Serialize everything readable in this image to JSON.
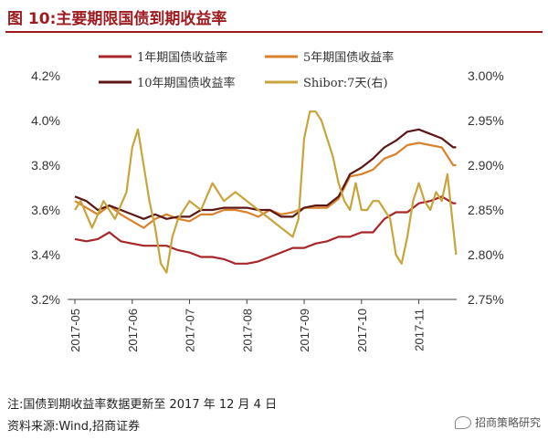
{
  "title": "图 10:主要期限国债到期收益率",
  "notes": {
    "line1": "注:国债到期收益率数据更新至 2017 年 12 月 4 日",
    "line2": "资料来源:Wind,招商证券"
  },
  "brand": {
    "name": "招商策略研究",
    "icon": "wechat-icon"
  },
  "chart_data": {
    "type": "line",
    "title": "",
    "xlabel": "",
    "ylabel": "",
    "y_left": {
      "ticks": [
        "4.2%",
        "4.0%",
        "3.8%",
        "3.6%",
        "3.4%",
        "3.2%"
      ],
      "range": [
        3.2,
        4.2
      ]
    },
    "y_right": {
      "ticks": [
        "3.00%",
        "2.95%",
        "2.90%",
        "2.85%",
        "2.80%",
        "2.75%"
      ],
      "range": [
        2.75,
        3.0
      ]
    },
    "x_ticks": [
      "2017-05",
      "2017-06",
      "2017-07",
      "2017-08",
      "2017-09",
      "2017-10",
      "2017-11"
    ],
    "grid": false,
    "legend_position": "top",
    "legend": [
      "1年期国债收益率",
      "5年期国债收益率",
      "10年期国债收益率",
      "Shibor:7天(右)"
    ],
    "series": [
      {
        "name": "1年期国债收益率",
        "axis": "left",
        "color": "#a8252a",
        "points": [
          [
            0.0,
            3.47
          ],
          [
            0.2,
            3.46
          ],
          [
            0.4,
            3.47
          ],
          [
            0.6,
            3.5
          ],
          [
            0.8,
            3.46
          ],
          [
            1.0,
            3.45
          ],
          [
            1.2,
            3.44
          ],
          [
            1.4,
            3.44
          ],
          [
            1.6,
            3.44
          ],
          [
            1.8,
            3.42
          ],
          [
            2.0,
            3.41
          ],
          [
            2.2,
            3.39
          ],
          [
            2.4,
            3.39
          ],
          [
            2.6,
            3.38
          ],
          [
            2.8,
            3.36
          ],
          [
            3.0,
            3.36
          ],
          [
            3.2,
            3.37
          ],
          [
            3.4,
            3.39
          ],
          [
            3.6,
            3.41
          ],
          [
            3.8,
            3.43
          ],
          [
            4.0,
            3.43
          ],
          [
            4.2,
            3.45
          ],
          [
            4.4,
            3.46
          ],
          [
            4.6,
            3.48
          ],
          [
            4.8,
            3.48
          ],
          [
            5.0,
            3.5
          ],
          [
            5.2,
            3.5
          ],
          [
            5.4,
            3.56
          ],
          [
            5.6,
            3.59
          ],
          [
            5.8,
            3.59
          ],
          [
            6.0,
            3.63
          ],
          [
            6.2,
            3.64
          ],
          [
            6.4,
            3.66
          ],
          [
            6.6,
            3.63
          ],
          [
            6.65,
            3.63
          ]
        ]
      },
      {
        "name": "5年期国债收益率",
        "axis": "left",
        "color": "#d9822b",
        "points": [
          [
            0.0,
            3.64
          ],
          [
            0.2,
            3.61
          ],
          [
            0.4,
            3.58
          ],
          [
            0.6,
            3.62
          ],
          [
            0.8,
            3.58
          ],
          [
            1.0,
            3.55
          ],
          [
            1.2,
            3.52
          ],
          [
            1.4,
            3.56
          ],
          [
            1.6,
            3.58
          ],
          [
            1.8,
            3.56
          ],
          [
            2.0,
            3.55
          ],
          [
            2.2,
            3.58
          ],
          [
            2.4,
            3.58
          ],
          [
            2.6,
            3.6
          ],
          [
            2.8,
            3.6
          ],
          [
            3.0,
            3.59
          ],
          [
            3.2,
            3.57
          ],
          [
            3.4,
            3.6
          ],
          [
            3.6,
            3.58
          ],
          [
            3.8,
            3.59
          ],
          [
            4.0,
            3.61
          ],
          [
            4.2,
            3.61
          ],
          [
            4.4,
            3.61
          ],
          [
            4.6,
            3.65
          ],
          [
            4.8,
            3.75
          ],
          [
            5.0,
            3.76
          ],
          [
            5.2,
            3.78
          ],
          [
            5.4,
            3.83
          ],
          [
            5.6,
            3.85
          ],
          [
            5.8,
            3.89
          ],
          [
            6.0,
            3.9
          ],
          [
            6.2,
            3.89
          ],
          [
            6.4,
            3.88
          ],
          [
            6.6,
            3.8
          ],
          [
            6.65,
            3.8
          ]
        ]
      },
      {
        "name": "10年期国债收益率",
        "axis": "left",
        "color": "#5c1616",
        "points": [
          [
            0.0,
            3.66
          ],
          [
            0.2,
            3.64
          ],
          [
            0.4,
            3.6
          ],
          [
            0.6,
            3.62
          ],
          [
            0.8,
            3.6
          ],
          [
            1.0,
            3.58
          ],
          [
            1.2,
            3.56
          ],
          [
            1.4,
            3.58
          ],
          [
            1.6,
            3.56
          ],
          [
            1.8,
            3.57
          ],
          [
            2.0,
            3.57
          ],
          [
            2.2,
            3.6
          ],
          [
            2.4,
            3.6
          ],
          [
            2.6,
            3.61
          ],
          [
            2.8,
            3.61
          ],
          [
            3.0,
            3.61
          ],
          [
            3.2,
            3.6
          ],
          [
            3.4,
            3.6
          ],
          [
            3.6,
            3.57
          ],
          [
            3.8,
            3.57
          ],
          [
            4.0,
            3.61
          ],
          [
            4.2,
            3.62
          ],
          [
            4.4,
            3.62
          ],
          [
            4.6,
            3.66
          ],
          [
            4.8,
            3.76
          ],
          [
            5.0,
            3.79
          ],
          [
            5.2,
            3.83
          ],
          [
            5.4,
            3.88
          ],
          [
            5.6,
            3.91
          ],
          [
            5.8,
            3.95
          ],
          [
            6.0,
            3.96
          ],
          [
            6.2,
            3.94
          ],
          [
            6.4,
            3.92
          ],
          [
            6.6,
            3.88
          ],
          [
            6.65,
            3.88
          ]
        ]
      },
      {
        "name": "Shibor:7天(右)",
        "axis": "right",
        "color": "#c8a43a",
        "points": [
          [
            0.0,
            2.85
          ],
          [
            0.1,
            2.86
          ],
          [
            0.3,
            2.83
          ],
          [
            0.5,
            2.86
          ],
          [
            0.7,
            2.84
          ],
          [
            0.9,
            2.87
          ],
          [
            1.0,
            2.92
          ],
          [
            1.1,
            2.94
          ],
          [
            1.2,
            2.9
          ],
          [
            1.3,
            2.86
          ],
          [
            1.4,
            2.83
          ],
          [
            1.5,
            2.79
          ],
          [
            1.6,
            2.78
          ],
          [
            1.7,
            2.82
          ],
          [
            1.8,
            2.84
          ],
          [
            2.0,
            2.86
          ],
          [
            2.2,
            2.85
          ],
          [
            2.4,
            2.88
          ],
          [
            2.6,
            2.86
          ],
          [
            2.8,
            2.87
          ],
          [
            3.0,
            2.86
          ],
          [
            3.2,
            2.85
          ],
          [
            3.4,
            2.84
          ],
          [
            3.6,
            2.83
          ],
          [
            3.8,
            2.82
          ],
          [
            3.9,
            2.84
          ],
          [
            4.0,
            2.93
          ],
          [
            4.1,
            2.96
          ],
          [
            4.2,
            2.96
          ],
          [
            4.3,
            2.95
          ],
          [
            4.4,
            2.93
          ],
          [
            4.5,
            2.91
          ],
          [
            4.6,
            2.88
          ],
          [
            4.7,
            2.86
          ],
          [
            4.8,
            2.85
          ],
          [
            4.9,
            2.88
          ],
          [
            5.0,
            2.85
          ],
          [
            5.1,
            2.85
          ],
          [
            5.2,
            2.86
          ],
          [
            5.3,
            2.86
          ],
          [
            5.4,
            2.85
          ],
          [
            5.5,
            2.84
          ],
          [
            5.6,
            2.8
          ],
          [
            5.7,
            2.79
          ],
          [
            5.8,
            2.82
          ],
          [
            5.9,
            2.86
          ],
          [
            6.0,
            2.88
          ],
          [
            6.1,
            2.86
          ],
          [
            6.2,
            2.85
          ],
          [
            6.3,
            2.87
          ],
          [
            6.4,
            2.86
          ],
          [
            6.5,
            2.89
          ],
          [
            6.6,
            2.83
          ],
          [
            6.65,
            2.8
          ]
        ]
      }
    ]
  }
}
